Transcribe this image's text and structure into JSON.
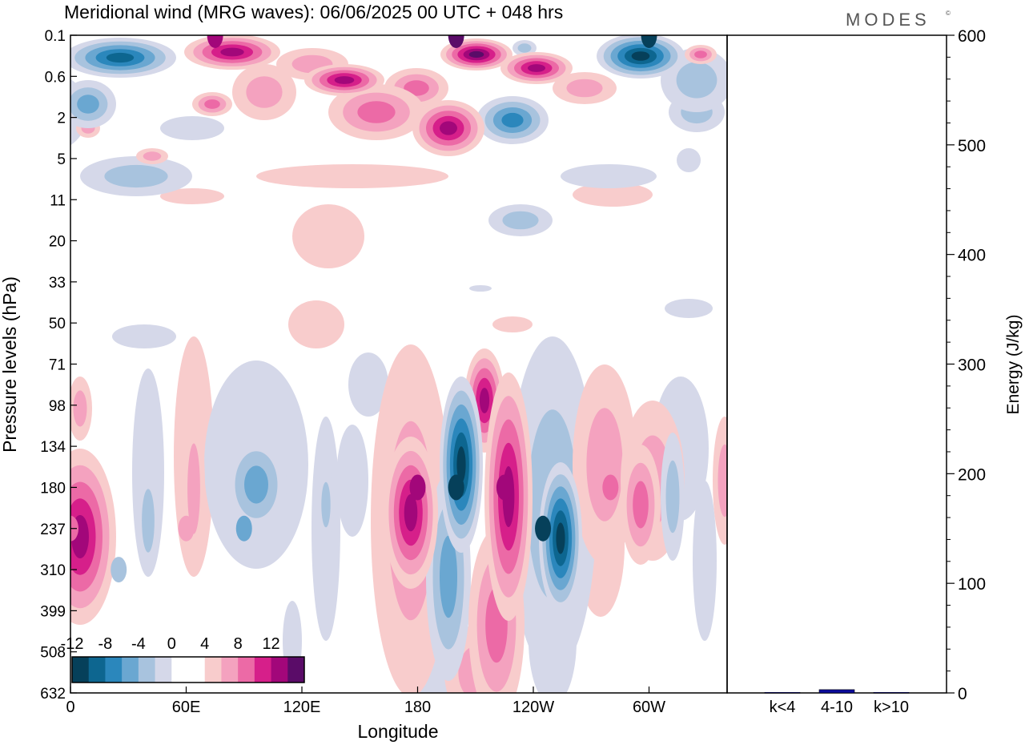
{
  "header": {
    "title": "Meridional wind (MRG waves):  06/06/2025  00 UTC  + 048 hrs",
    "brand": "MODES",
    "brand_mark": "©"
  },
  "colors": {
    "negative": [
      "#06405a",
      "#0d6690",
      "#2b87bc",
      "#6aa7d1",
      "#a8c3de",
      "#d5d8e9"
    ],
    "neutral": "#ffffff",
    "positive": [
      "#f8cccc",
      "#f4a2bf",
      "#ec6aa6",
      "#d61f8a",
      "#a2077a",
      "#5a0c68"
    ],
    "bar": "#0b0b9c"
  },
  "chart_data": [
    {
      "type": "heatmap",
      "title": "Meridional wind (MRG waves):  06/06/2025  00 UTC  + 048 hrs",
      "xlabel": "Longitude",
      "ylabel": "Pressure levels (hPa)",
      "x_ticks": [
        "0",
        "60E",
        "120E",
        "180",
        "120W",
        "60W"
      ],
      "y_ticks": [
        "0.1",
        "0.6",
        "2",
        "5",
        "11",
        "20",
        "33",
        "50",
        "71",
        "98",
        "134",
        "180",
        "237",
        "310",
        "399",
        "508",
        "632"
      ],
      "colorbar_labels": [
        "-12",
        "-8",
        "-4",
        "0",
        "4",
        "8",
        "12"
      ],
      "features": [
        {
          "lon": 0,
          "level": "237",
          "value": 8
        },
        {
          "lon": 25,
          "level": "310",
          "value": -4
        },
        {
          "lon": 60,
          "level": "237",
          "value": 4
        },
        {
          "lon": 90,
          "level": "237",
          "value": -6
        },
        {
          "lon": 180,
          "level": "180",
          "value": 12
        },
        {
          "lon": 200,
          "level": "180",
          "value": -13
        },
        {
          "lon": 225,
          "level": "180",
          "value": 12
        },
        {
          "lon": 245,
          "level": "237",
          "value": -13
        },
        {
          "lon": 280,
          "level": "180",
          "value": 7
        },
        {
          "lon": 75,
          "level": "0.1",
          "value": 12
        },
        {
          "lon": 200,
          "level": "0.1",
          "value": 14
        },
        {
          "lon": 300,
          "level": "0.1",
          "value": -14
        }
      ]
    },
    {
      "type": "bar",
      "categories": [
        "k<4",
        "4-10",
        "k>10"
      ],
      "values": [
        0.5,
        3,
        0.5
      ],
      "ylabel": "Energy (J/kg)",
      "ylim": [
        0,
        600
      ],
      "y_ticks": [
        "0",
        "100",
        "200",
        "300",
        "400",
        "500",
        "600"
      ]
    }
  ]
}
